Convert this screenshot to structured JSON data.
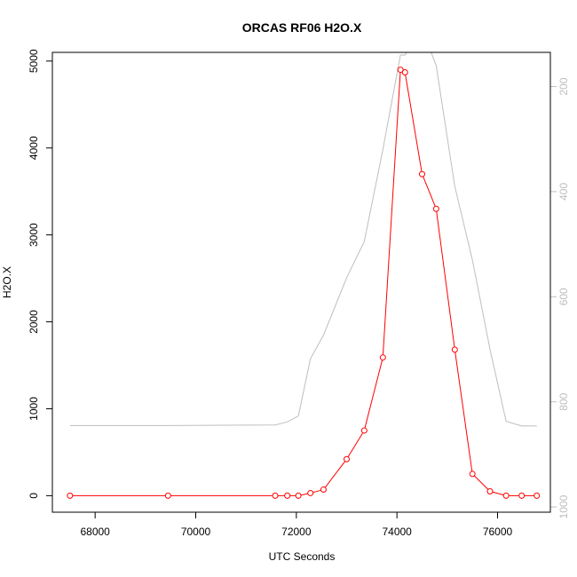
{
  "chart_data": {
    "type": "line",
    "title": "ORCAS RF06 H2O.X",
    "xlabel": "UTC Seconds",
    "ylabel": "H2O.X",
    "xlim": [
      67150,
      77050
    ],
    "ylim": [
      -190,
      5100
    ],
    "x_ticks": [
      "68000",
      "70000",
      "72000",
      "74000",
      "76000"
    ],
    "y_ticks": [
      "0",
      "1000",
      "2000",
      "3000",
      "4000",
      "5000"
    ],
    "y2_ticks": [
      "200",
      "400",
      "600",
      "800",
      "1000"
    ],
    "y2lim": [
      1010,
      135
    ],
    "grid": false,
    "legend": "none",
    "colors": {
      "series": "#ff0000",
      "secondary": "#bebebe",
      "axis": "#000000"
    },
    "series": [
      {
        "color": "#ff0000",
        "marker": "open-circle",
        "x": [
          67500,
          69450,
          71580,
          71820,
          72040,
          72280,
          72540,
          73000,
          73350,
          73720,
          74070,
          74160,
          74500,
          74780,
          75150,
          75500,
          75850,
          76170,
          76480,
          76780
        ],
        "y": [
          0,
          0,
          0,
          0,
          0,
          30,
          70,
          420,
          750,
          1590,
          4900,
          4870,
          3700,
          3300,
          1680,
          250,
          50,
          0,
          0,
          0
        ]
      },
      {
        "color": "#bebebe",
        "axis": "right",
        "x": [
          67500,
          69450,
          71580,
          71820,
          72040,
          72280,
          72540,
          73000,
          73350,
          73720,
          74070,
          74160,
          74500,
          74780,
          75150,
          75500,
          75850,
          76170,
          76480,
          76780
        ],
        "y": [
          845,
          845,
          844,
          838,
          827,
          718,
          673,
          564,
          495,
          320,
          140,
          140,
          90,
          160,
          390,
          530,
          700,
          837,
          846,
          846
        ]
      }
    ]
  }
}
